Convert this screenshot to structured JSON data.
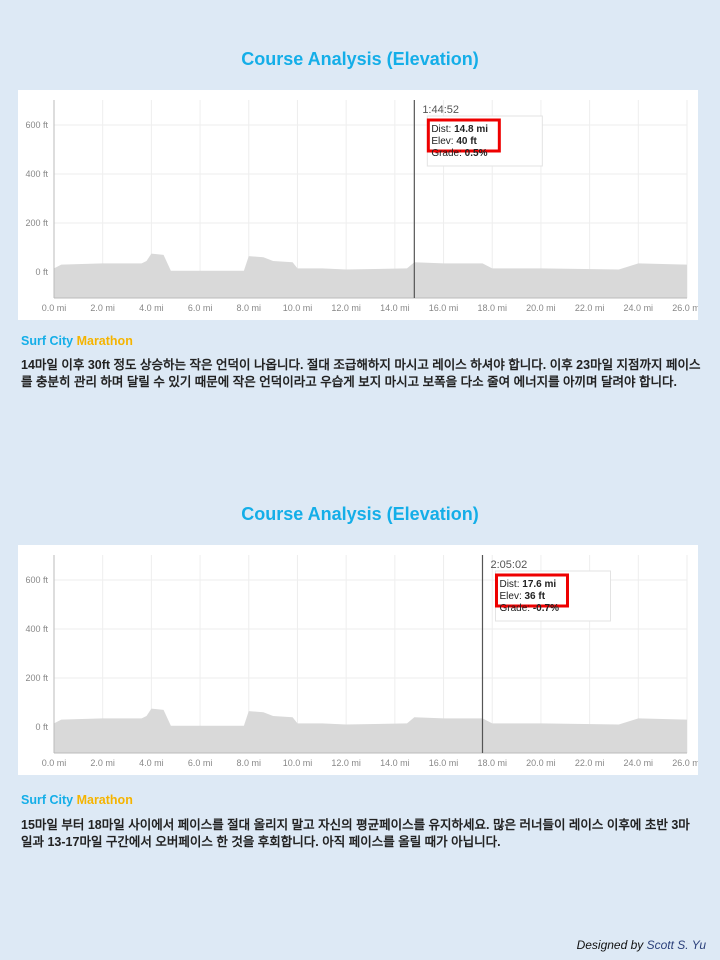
{
  "sections": [
    {
      "title": "Course Analysis (Elevation)",
      "subtitle_a": "Surf City",
      "subtitle_b": "Marathon",
      "text": "14마일 이후 30ft 정도 상승하는 작은 언덕이 나옵니다. 절대 조급해하지 마시고 레이스 하셔야 합니다. 이후 23마일 지점까지 페이스를 충분히 관리 하며 달릴 수 있기 때문에 작은 언덕이라고 우습게 보지 마시고 보폭을 다소 줄여 에너지를 아끼며 달려야 합니다.",
      "tooltip": {
        "time": "1:44:52",
        "dist_label": "Dist: ",
        "dist": "14.8 mi",
        "elev_label": "Elev: ",
        "elev": "40 ft",
        "grade_label": "Grade: ",
        "grade": "0.5%"
      }
    },
    {
      "title": "Course Analysis (Elevation)",
      "subtitle_a": "Surf City",
      "subtitle_b": "Marathon",
      "text": "15마일 부터 18마일 사이에서 페이스를 절대 올리지 말고 자신의 평균페이스를 유지하세요. 많은 러너들이 레이스 이후에 초반 3마일과 13-17마일 구간에서 오버페이스 한 것을 후회합니다. 아직 페이스를 올릴 때가 아닙니다.",
      "tooltip": {
        "time": "2:05:02",
        "dist_label": "Dist: ",
        "dist": "17.6 mi",
        "elev_label": "Elev: ",
        "elev": "36 ft",
        "grade_label": "Grade: ",
        "grade": "-0.7%"
      }
    }
  ],
  "credit": {
    "prefix": "Designed by ",
    "name": "Scott S. Yu"
  },
  "chart_data": [
    {
      "type": "area",
      "xlabel": "",
      "ylabel": "",
      "xlim": [
        0,
        26.2
      ],
      "ylim": [
        -105,
        700
      ],
      "grid": true,
      "x_ticks": [
        "0.0 mi",
        "2.0 mi",
        "4.0 mi",
        "6.0 mi",
        "8.0 mi",
        "10.0 mi",
        "12.0 mi",
        "14.0 mi",
        "16.0 mi",
        "18.0 mi",
        "20.0 mi",
        "22.0 mi",
        "24.0 mi",
        "26.0 mi"
      ],
      "y_ticks": [
        "0 ft",
        "200 ft",
        "400 ft",
        "600 ft"
      ],
      "x": [
        0,
        0.3,
        2,
        3.6,
        3.8,
        4.0,
        4.5,
        4.8,
        5,
        6,
        7.8,
        8.0,
        8.6,
        9,
        9.8,
        10,
        11,
        12,
        14.5,
        14.8,
        16,
        17.6,
        18,
        20,
        23.2,
        24,
        26,
        26.2
      ],
      "y": [
        15,
        30,
        35,
        35,
        45,
        75,
        70,
        5,
        5,
        5,
        5,
        65,
        60,
        45,
        40,
        15,
        15,
        10,
        15,
        40,
        35,
        35,
        15,
        15,
        10,
        35,
        30,
        25
      ],
      "cursor_x": 14.8,
      "fill": "#d9d9d9"
    },
    {
      "type": "area",
      "xlabel": "",
      "ylabel": "",
      "xlim": [
        0,
        26.2
      ],
      "ylim": [
        -105,
        700
      ],
      "grid": true,
      "x_ticks": [
        "0.0 mi",
        "2.0 mi",
        "4.0 mi",
        "6.0 mi",
        "8.0 mi",
        "10.0 mi",
        "12.0 mi",
        "14.0 mi",
        "16.0 mi",
        "18.0 mi",
        "20.0 mi",
        "22.0 mi",
        "24.0 mi",
        "26.0 mi"
      ],
      "y_ticks": [
        "0 ft",
        "200 ft",
        "400 ft",
        "600 ft"
      ],
      "x": [
        0,
        0.3,
        2,
        3.6,
        3.8,
        4.0,
        4.5,
        4.8,
        5,
        6,
        7.8,
        8.0,
        8.6,
        9,
        9.8,
        10,
        11,
        12,
        14.5,
        14.8,
        16,
        17.6,
        18,
        20,
        23.2,
        24,
        26,
        26.2
      ],
      "y": [
        15,
        30,
        35,
        35,
        45,
        75,
        70,
        5,
        5,
        5,
        5,
        65,
        60,
        45,
        40,
        15,
        15,
        10,
        15,
        40,
        35,
        35,
        15,
        15,
        10,
        35,
        30,
        25
      ],
      "cursor_x": 17.6,
      "fill": "#d9d9d9"
    }
  ]
}
